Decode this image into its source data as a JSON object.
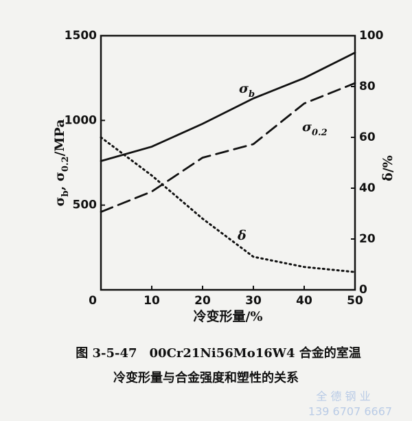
{
  "chart_data": {
    "type": "line",
    "xlabel": "冷变形量/%",
    "ylabel": [
      {
        "text": "σ"
      },
      {
        "text": "b",
        "sub": true
      },
      {
        "text": ", σ"
      },
      {
        "text": "0.2",
        "sub": true
      },
      {
        "text": "/MPa"
      }
    ],
    "y2label": [
      {
        "text": "δ/%"
      }
    ],
    "x": [
      0,
      10,
      20,
      30,
      40,
      50
    ],
    "xlim": [
      0,
      50
    ],
    "xticks": [
      0,
      10,
      20,
      30,
      40,
      50
    ],
    "ylim": [
      0,
      1500
    ],
    "yticks": [
      500,
      1000,
      1500
    ],
    "y2lim": [
      0,
      100
    ],
    "y2ticks": [
      0,
      20,
      40,
      60,
      80,
      100
    ],
    "series": [
      {
        "label": [
          {
            "text": "σ"
          },
          {
            "text": "b",
            "sub": true
          }
        ],
        "color": "#111111",
        "dash": "none",
        "values": [
          760,
          845,
          980,
          1130,
          1250,
          1400
        ]
      },
      {
        "label": [
          {
            "text": "σ"
          },
          {
            "text": "0.2",
            "sub": true
          }
        ],
        "color": "#111111",
        "dash": "18 9",
        "values": [
          460,
          580,
          780,
          860,
          1100,
          1220
        ]
      },
      {
        "label": [
          {
            "text": "δ"
          }
        ],
        "color": "#111111",
        "dash": "2 5",
        "axis": "y2",
        "values": [
          60,
          45,
          28,
          13,
          9,
          7
        ]
      }
    ],
    "caption": [
      "图 3-5-47　00Cr21Ni56Mo16W4 合金的室温",
      "冷变形量与合金强度和塑性的关系"
    ],
    "watermark": [
      "全 德 钢 业",
      "139 6707 6667"
    ]
  }
}
